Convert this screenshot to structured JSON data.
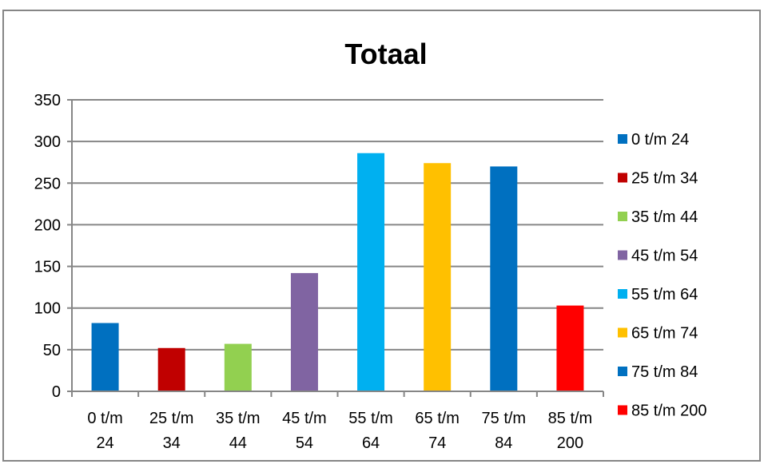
{
  "chart_data": {
    "type": "bar",
    "title": "Totaal",
    "xlabel": "",
    "ylabel": "",
    "ylim": [
      0,
      350
    ],
    "yticks": [
      0,
      50,
      100,
      150,
      200,
      250,
      300,
      350
    ],
    "grid": "horizontal",
    "legend": "right",
    "categories": [
      [
        "0 t/m",
        "24"
      ],
      [
        "25 t/m",
        "34"
      ],
      [
        "35 t/m",
        "44"
      ],
      [
        "45 t/m",
        "54"
      ],
      [
        "55 t/m",
        "64"
      ],
      [
        "65 t/m",
        "74"
      ],
      [
        "75 t/m",
        "84"
      ],
      [
        "85 t/m",
        "200"
      ]
    ],
    "values": [
      82,
      52,
      57,
      142,
      286,
      274,
      270,
      103
    ],
    "colors": [
      "#0070C0",
      "#C00000",
      "#92D050",
      "#8064A2",
      "#00B0F0",
      "#FFC000",
      "#0070C0",
      "#FF0000"
    ],
    "legend_entries": [
      "0 t/m 24",
      "25 t/m 34",
      "35 t/m 44",
      "45 t/m 54",
      "55 t/m 64",
      "65 t/m 74",
      "75 t/m 84",
      "85 t/m 200"
    ]
  }
}
